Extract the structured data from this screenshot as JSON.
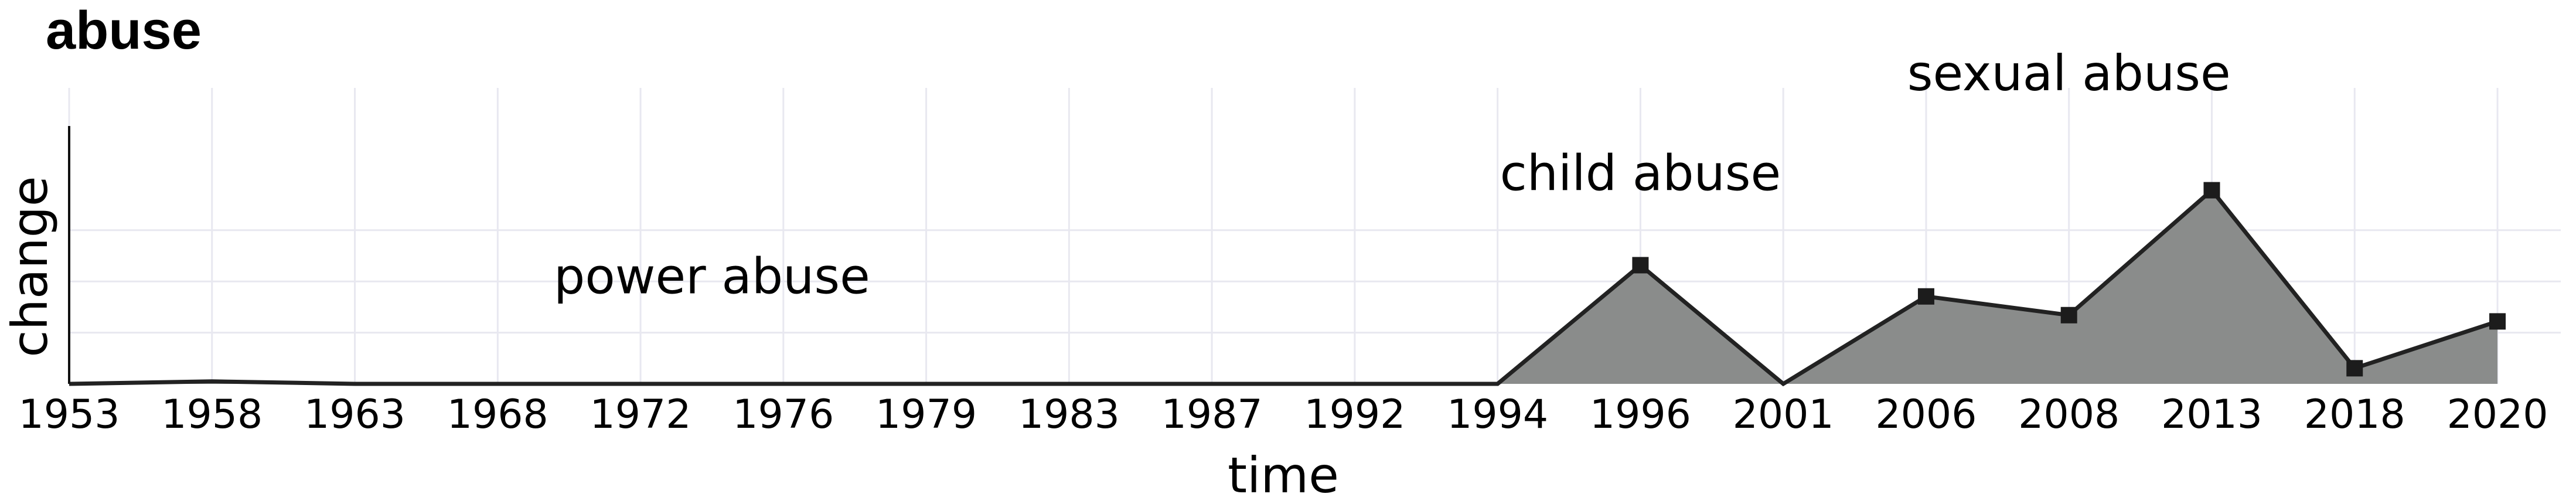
{
  "chart_data": {
    "type": "area",
    "title": "abuse",
    "xlabel": "time",
    "ylabel": "change",
    "categories": [
      "1953",
      "1958",
      "1963",
      "1968",
      "1972",
      "1976",
      "1979",
      "1983",
      "1987",
      "1992",
      "1994",
      "1996",
      "2001",
      "2006",
      "2008",
      "2013",
      "2018",
      "2020"
    ],
    "series": [
      {
        "values": [
          0,
          0.008,
          0,
          0,
          0,
          0,
          0,
          0,
          0,
          0,
          0,
          0.38,
          0,
          0.28,
          0.22,
          0.62,
          0.05,
          0.2
        ]
      }
    ],
    "ylim": [
      0,
      0.82
    ],
    "grid": true,
    "annotations": [
      {
        "text": "power abuse",
        "x": "1974",
        "y": 0.29
      },
      {
        "text": "child abuse",
        "x": "1996",
        "y": 0.62
      },
      {
        "text": "sexual abuse",
        "x": "2008",
        "y": 0.94
      }
    ],
    "colors": {
      "fill": "#8a8c8b",
      "line": "#222222",
      "marker": "#1c1c1c",
      "grid": "#e8e8f0"
    }
  }
}
